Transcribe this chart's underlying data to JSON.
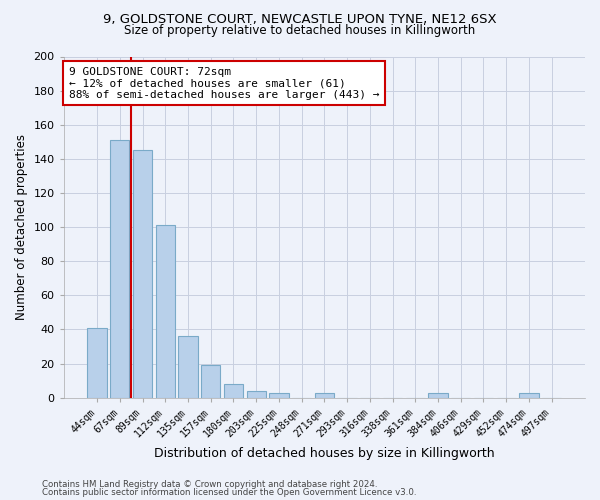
{
  "title1": "9, GOLDSTONE COURT, NEWCASTLE UPON TYNE, NE12 6SX",
  "title2": "Size of property relative to detached houses in Killingworth",
  "xlabel": "Distribution of detached houses by size in Killingworth",
  "ylabel": "Number of detached properties",
  "categories": [
    "44sqm",
    "67sqm",
    "89sqm",
    "112sqm",
    "135sqm",
    "157sqm",
    "180sqm",
    "203sqm",
    "225sqm",
    "248sqm",
    "271sqm",
    "293sqm",
    "316sqm",
    "338sqm",
    "361sqm",
    "384sqm",
    "406sqm",
    "429sqm",
    "452sqm",
    "474sqm",
    "497sqm"
  ],
  "values": [
    41,
    151,
    145,
    101,
    36,
    19,
    8,
    4,
    3,
    0,
    3,
    0,
    0,
    0,
    0,
    3,
    0,
    0,
    0,
    3,
    0
  ],
  "bar_color": "#b8d0ea",
  "bar_edge_color": "#7aaac8",
  "vline_x": 1.5,
  "vline_color": "#cc0000",
  "annotation_line1": "9 GOLDSTONE COURT: 72sqm",
  "annotation_line2": "← 12% of detached houses are smaller (61)",
  "annotation_line3": "88% of semi-detached houses are larger (443) →",
  "annotation_box_color": "#ffffff",
  "annotation_box_edge": "#cc0000",
  "ylim": [
    0,
    200
  ],
  "yticks": [
    0,
    20,
    40,
    60,
    80,
    100,
    120,
    140,
    160,
    180,
    200
  ],
  "footer1": "Contains HM Land Registry data © Crown copyright and database right 2024.",
  "footer2": "Contains public sector information licensed under the Open Government Licence v3.0.",
  "bg_color": "#eef2fa",
  "plot_bg_color": "#eef2fa",
  "grid_color": "#c8cfe0"
}
